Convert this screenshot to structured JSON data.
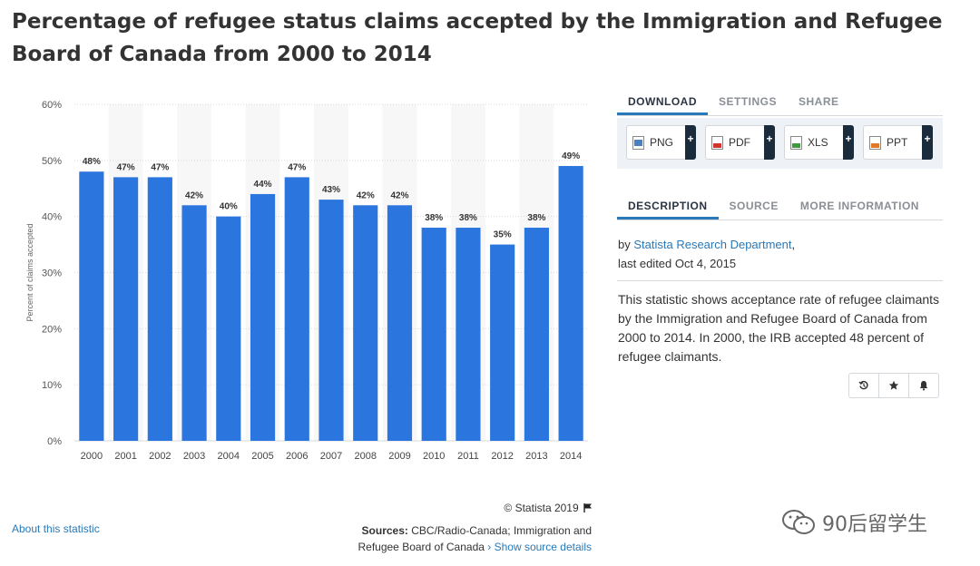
{
  "title": "Percentage of refugee status claims accepted by the Immigration and Refugee Board of Canada from 2000 to 2014",
  "chart_data": {
    "type": "bar",
    "categories": [
      "2000",
      "2001",
      "2002",
      "2003",
      "2004",
      "2005",
      "2006",
      "2007",
      "2008",
      "2009",
      "2010",
      "2011",
      "2012",
      "2013",
      "2014"
    ],
    "values": [
      48,
      47,
      47,
      42,
      40,
      44,
      47,
      43,
      42,
      42,
      38,
      38,
      35,
      38,
      49
    ],
    "value_labels": [
      "48%",
      "47%",
      "47%",
      "42%",
      "40%",
      "44%",
      "47%",
      "43%",
      "42%",
      "42%",
      "38%",
      "38%",
      "35%",
      "38%",
      "49%"
    ],
    "ylabel": "Percent of claims accepted",
    "ylim": [
      0,
      60
    ],
    "yticks": [
      0,
      10,
      20,
      30,
      40,
      50,
      60
    ],
    "ytick_labels": [
      "0%",
      "10%",
      "20%",
      "30%",
      "40%",
      "50%",
      "60%"
    ],
    "bar_color": "#2b76de",
    "grid": true
  },
  "footer": {
    "copyright": "© Statista 2019",
    "about": "About this statistic",
    "sources_label": "Sources:",
    "sources_text": "CBC/Radio-Canada; Immigration and Refugee Board of Canada",
    "show_source": "› Show source details"
  },
  "tabs_top": [
    "DOWNLOAD",
    "SETTINGS",
    "SHARE"
  ],
  "downloads": [
    {
      "label": "PNG",
      "icon": "png-file-icon",
      "color": "#4a7fc1"
    },
    {
      "label": "PDF",
      "icon": "pdf-file-icon",
      "color": "#d0342c"
    },
    {
      "label": "XLS",
      "icon": "xls-file-icon",
      "color": "#3d9a3d"
    },
    {
      "label": "PPT",
      "icon": "ppt-file-icon",
      "color": "#e0782a"
    }
  ],
  "tabs_desc": [
    "DESCRIPTION",
    "SOURCE",
    "MORE INFORMATION"
  ],
  "byline": {
    "by": "by",
    "author": "Statista Research Department",
    "comma": ",",
    "edited": "last edited Oct 4, 2015"
  },
  "description": "This statistic shows acceptance rate of refugee claimants by the Immigration and Refugee Board of Canada from 2000 to 2014. In 2000, the IRB accepted 48 percent of refugee claimants.",
  "actions": [
    "history-icon",
    "star-icon",
    "bell-icon"
  ],
  "watermark": "90后留学生"
}
